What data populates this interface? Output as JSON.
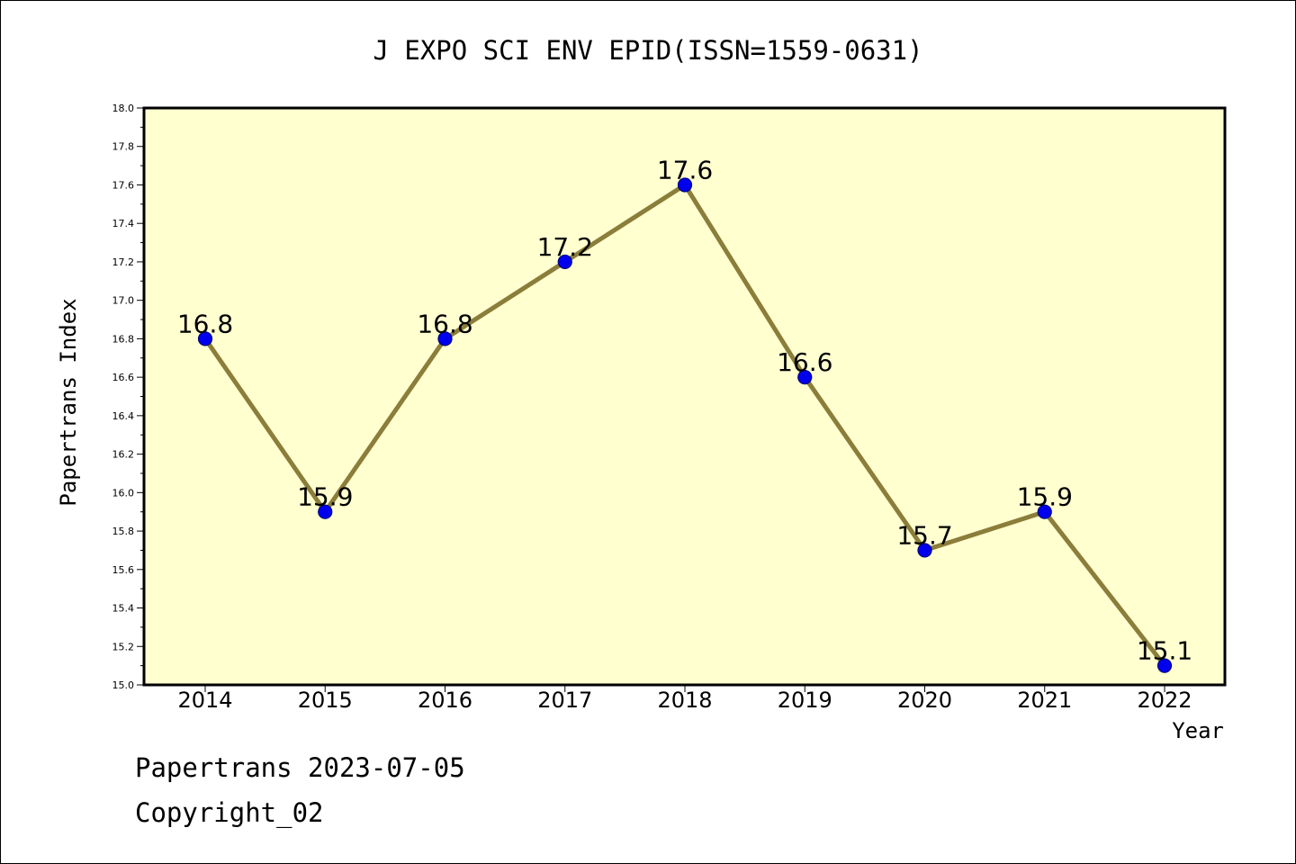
{
  "chart_data": {
    "type": "line",
    "title": "J EXPO SCI ENV EPID(ISSN=1559-0631)",
    "xlabel": "Year",
    "ylabel": "Papertrans Index",
    "categories": [
      "2014",
      "2015",
      "2016",
      "2017",
      "2018",
      "2019",
      "2020",
      "2021",
      "2022"
    ],
    "series": [
      {
        "name": "Papertrans Index",
        "values": [
          16.8,
          15.9,
          16.8,
          17.2,
          17.6,
          16.6,
          15.7,
          15.9,
          15.1
        ]
      }
    ],
    "data_labels": [
      "16.8",
      "15.9",
      "16.8",
      "17.2",
      "17.6",
      "16.6",
      "15.7",
      "15.9",
      "15.1"
    ],
    "ylim": [
      15.0,
      18.0
    ],
    "yticks": [
      "15.0",
      "15.2",
      "15.4",
      "15.6",
      "15.8",
      "16.0",
      "16.2",
      "16.4",
      "16.6",
      "16.8",
      "17.0",
      "17.2",
      "17.4",
      "17.6",
      "17.8",
      "18.0"
    ],
    "grid": false,
    "colors": {
      "plot_bg": "#ffffd0",
      "line": "#8b7d3a",
      "marker": "#0000ee",
      "marker_edge": "#000080"
    }
  },
  "footer": {
    "date_line": "Papertrans 2023-07-05",
    "copyright": "Copyright_02"
  }
}
